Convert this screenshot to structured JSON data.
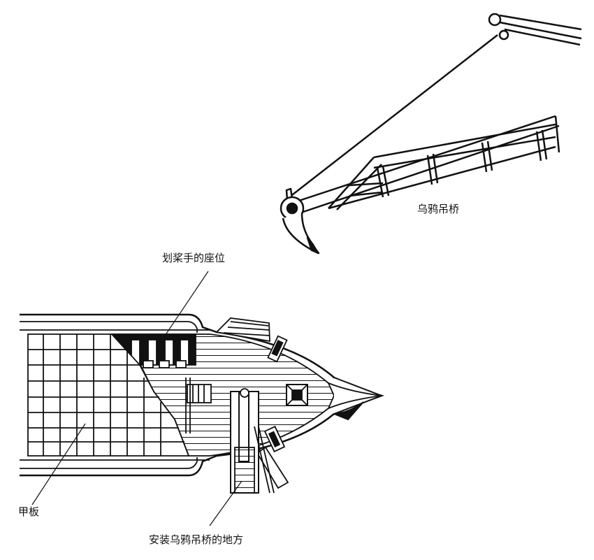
{
  "labels": {
    "corvus": "乌鸦吊桥",
    "rowers_seats": "划桨手的座位",
    "deck": "甲板",
    "corvus_mount": "安装乌鸦吊桥的地方"
  },
  "colors": {
    "ink": "#111111",
    "paper": "#ffffff"
  }
}
